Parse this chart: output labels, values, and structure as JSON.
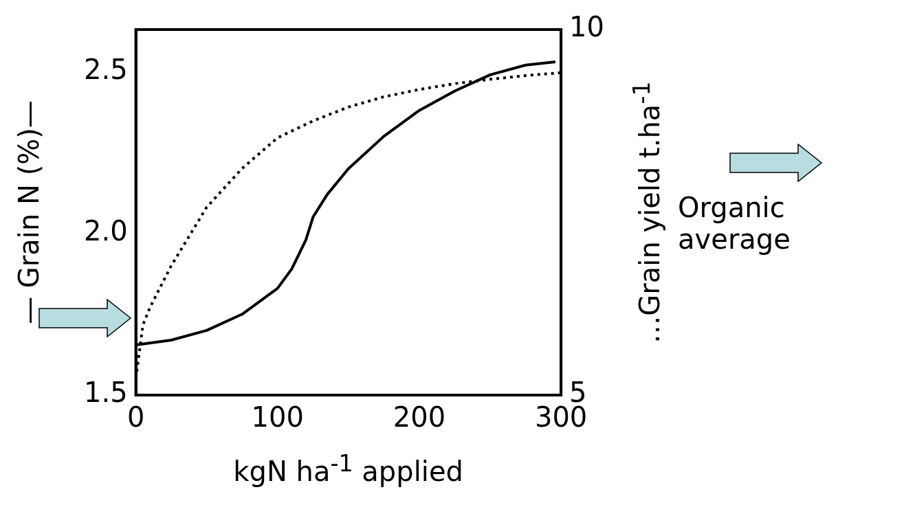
{
  "chart_data": {
    "type": "line",
    "xlabel": "kgN ha$^{-1}$ applied",
    "ylabel": "— Grain N (%)—",
    "y2label": "…Grain yield t.ha$^{-1}$",
    "xlim": [
      0,
      300
    ],
    "xticks": [
      0,
      100,
      200,
      300
    ],
    "ylim": [
      1.5,
      2.63
    ],
    "yticks": [
      {
        "value": 1.5,
        "label": "1.5"
      },
      {
        "value": 2,
        "label": "2.0"
      },
      {
        "value": 2.5,
        "label": "2.5"
      }
    ],
    "y2lim": [
      5,
      10
    ],
    "y2ticks": [
      5,
      10
    ],
    "grid": false,
    "legend": false,
    "marker": "none",
    "annotations": [
      "Organic average"
    ],
    "series": [
      {
        "color": "#000000",
        "line_style": "solid",
        "axis": "y",
        "x": [
          0,
          25,
          50,
          75,
          100,
          110,
          120,
          125,
          135,
          150,
          175,
          200,
          225,
          250,
          275,
          296
        ],
        "values": [
          1.655,
          1.67,
          1.7,
          1.75,
          1.83,
          1.89,
          1.98,
          2.05,
          2.12,
          2.2,
          2.3,
          2.38,
          2.44,
          2.49,
          2.52,
          2.53
        ]
      },
      {
        "color": "#000000",
        "line_style": "dotted",
        "axis": "y2",
        "x": [
          0,
          5,
          10,
          25,
          50,
          75,
          100,
          125,
          150,
          175,
          200,
          225,
          250,
          275,
          300
        ],
        "values": [
          5.23,
          5.96,
          6.2,
          6.77,
          7.57,
          8.1,
          8.52,
          8.75,
          8.94,
          9.08,
          9.18,
          9.26,
          9.32,
          9.37,
          9.41
        ]
      }
    ]
  }
}
